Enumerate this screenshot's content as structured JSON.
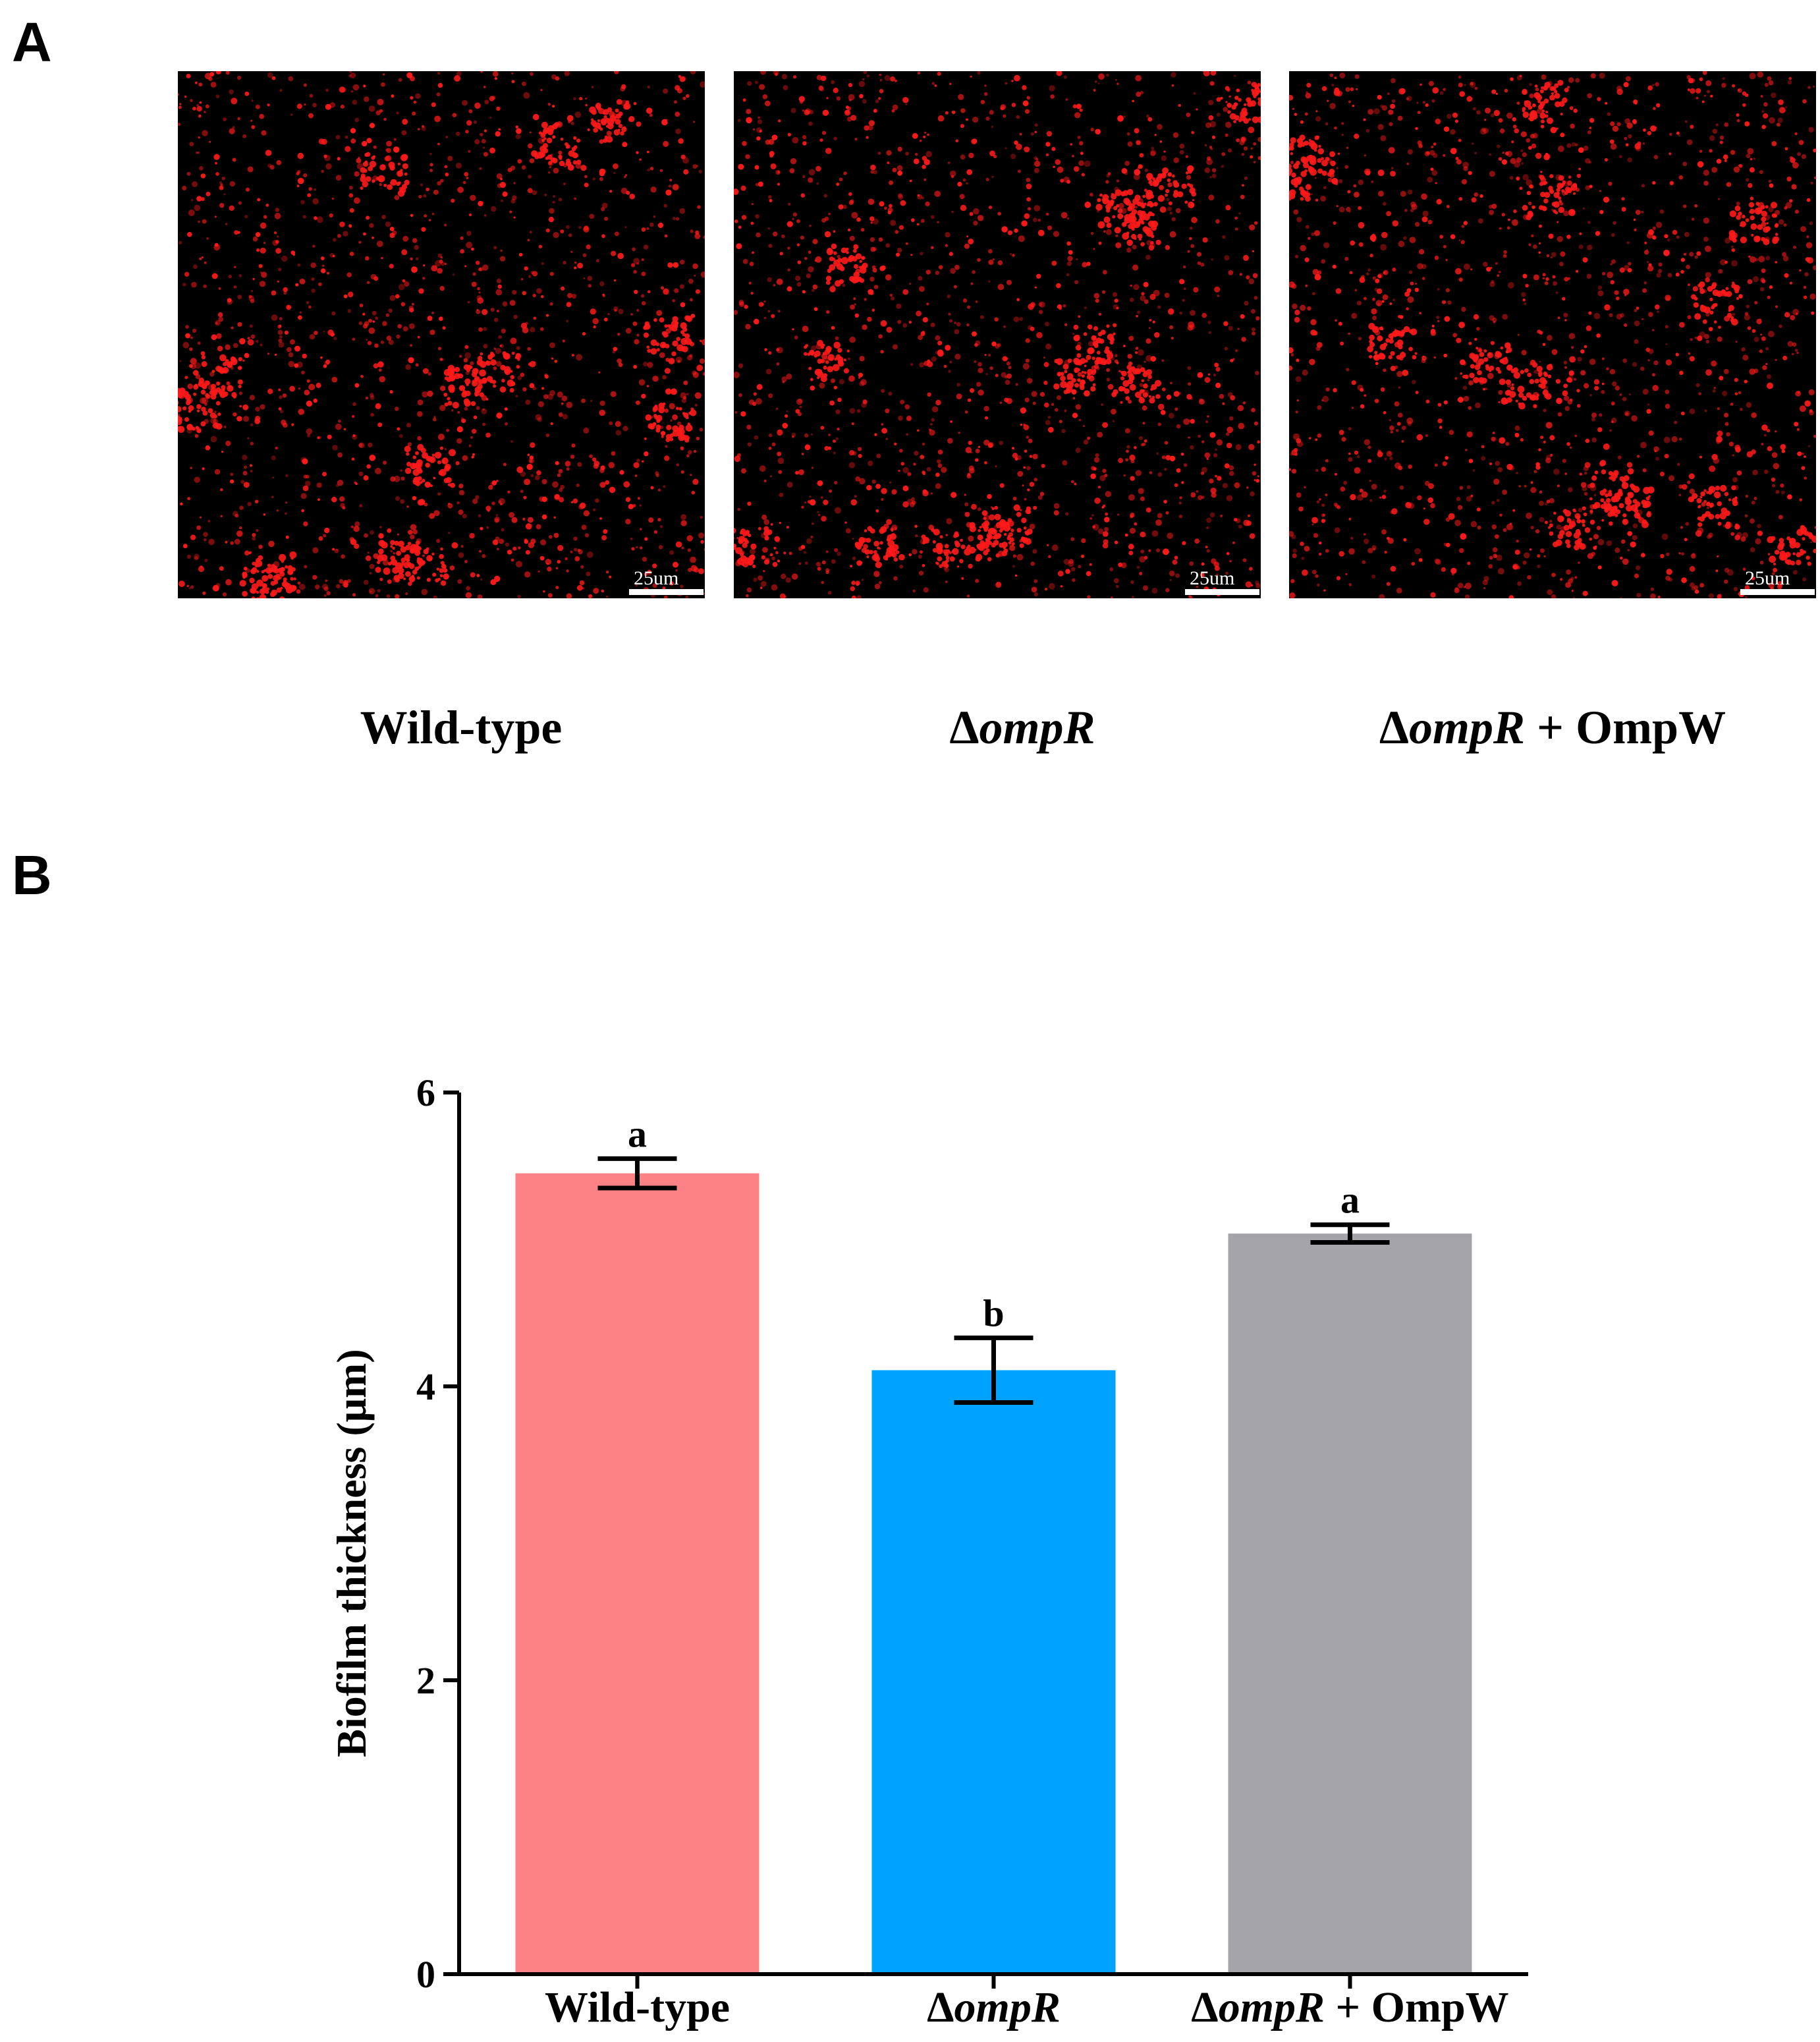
{
  "panel_a": {
    "letter": "A",
    "images": [
      {
        "caption_plain": "Wild-type",
        "caption_italic": "",
        "caption_suffix": "",
        "scale_label": "25um"
      },
      {
        "caption_plain": "Δ",
        "caption_italic": "ompR",
        "caption_suffix": "",
        "scale_label": "25um"
      },
      {
        "caption_plain": "Δ",
        "caption_italic": "ompR",
        "caption_suffix": " + OmpW",
        "scale_label": "25um"
      }
    ],
    "colors": {
      "background": "#000000",
      "signal": "#ff1a1a"
    }
  },
  "panel_b": {
    "letter": "B"
  },
  "chart_data": {
    "type": "bar",
    "categories": [
      {
        "prefix": "",
        "italic": "",
        "suffix": "Wild-type"
      },
      {
        "prefix": "Δ",
        "italic": "ompR",
        "suffix": ""
      },
      {
        "prefix": "Δ",
        "italic": "ompR",
        "suffix": " + OmpW"
      }
    ],
    "values": [
      5.45,
      4.11,
      5.04
    ],
    "errors": [
      0.1,
      0.22,
      0.06
    ],
    "significance_letters": [
      "a",
      "b",
      "a"
    ],
    "colors": [
      "#fc8286",
      "#00a2ff",
      "#a5a4a8"
    ],
    "ylabel": "Biofilm thickness (μm)",
    "ylim": [
      0,
      6
    ],
    "yticks": [
      0,
      2,
      4,
      6
    ],
    "ytick_labels": [
      "0",
      "2",
      "4",
      "6"
    ],
    "grid": false
  }
}
